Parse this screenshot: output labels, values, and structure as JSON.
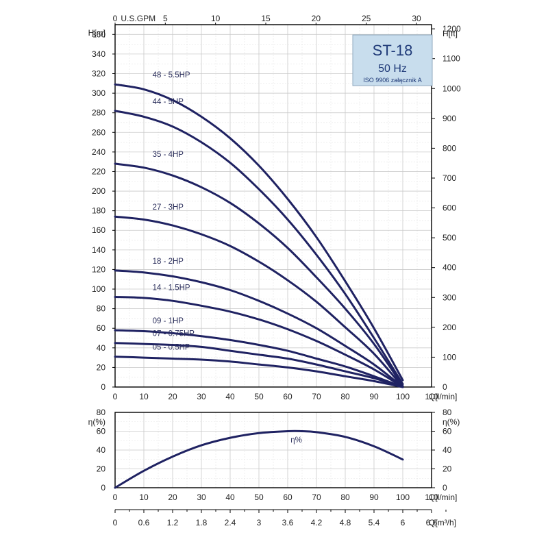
{
  "chart_data": [
    {
      "type": "line",
      "title_box": {
        "model": "ST-18",
        "frequency": "50 Hz",
        "note": "ISO 9906 załącznik A"
      },
      "x_axis": {
        "unit_label": "Q[l/min]",
        "range": [
          0,
          110
        ],
        "ticks": [
          0,
          10,
          20,
          30,
          40,
          50,
          60,
          70,
          80,
          90,
          100,
          110
        ]
      },
      "x_axis_top": {
        "unit_label": "U.S.GPM",
        "range": [
          0,
          31.5
        ],
        "ticks": [
          0,
          5,
          10,
          15,
          20,
          25,
          30
        ]
      },
      "y_axis_left": {
        "unit_label": "H[m]",
        "range": [
          0,
          370
        ],
        "ticks": [
          0,
          20,
          40,
          60,
          80,
          100,
          120,
          140,
          160,
          180,
          200,
          220,
          240,
          260,
          280,
          300,
          320,
          340,
          360
        ]
      },
      "y_axis_right": {
        "unit_label": "H[ft]",
        "range": [
          0,
          1214
        ],
        "ticks": [
          0,
          100,
          200,
          300,
          400,
          500,
          600,
          700,
          800,
          900,
          1000,
          1100,
          1200
        ]
      },
      "series": [
        {
          "name": "48 - 5.5HP",
          "x": [
            0,
            10,
            20,
            30,
            40,
            50,
            60,
            70,
            80,
            90,
            100
          ],
          "y": [
            309,
            304,
            293,
            276,
            254,
            226,
            192,
            153,
            108,
            60,
            7
          ]
        },
        {
          "name": "44 - 5HP",
          "x": [
            0,
            10,
            20,
            30,
            40,
            50,
            60,
            70,
            80,
            90,
            100
          ],
          "y": [
            282,
            276,
            266,
            250,
            229,
            202,
            171,
            135,
            95,
            50,
            3
          ]
        },
        {
          "name": "35 - 4HP",
          "x": [
            0,
            10,
            20,
            30,
            40,
            50,
            60,
            70,
            80,
            90,
            100
          ],
          "y": [
            228,
            224,
            216,
            204,
            188,
            167,
            142,
            112,
            80,
            44,
            1
          ]
        },
        {
          "name": "27 - 3HP",
          "x": [
            0,
            10,
            20,
            30,
            40,
            50,
            60,
            70,
            80,
            90,
            100
          ],
          "y": [
            174,
            171,
            165,
            156,
            144,
            128,
            109,
            87,
            61,
            34,
            0
          ]
        },
        {
          "name": "18 - 2HP",
          "x": [
            0,
            10,
            20,
            30,
            40,
            50,
            60,
            70,
            80,
            90,
            100
          ],
          "y": [
            119,
            117,
            113,
            107,
            99,
            88,
            75,
            60,
            42,
            23,
            0
          ]
        },
        {
          "name": "14 - 1.5HP",
          "x": [
            0,
            10,
            20,
            30,
            40,
            50,
            60,
            70,
            80,
            90,
            100
          ],
          "y": [
            92,
            91,
            88,
            83,
            77,
            69,
            59,
            47,
            33,
            18,
            0
          ]
        },
        {
          "name": "09 - 1HP",
          "x": [
            0,
            10,
            20,
            30,
            40,
            50,
            60,
            70,
            80,
            90,
            100
          ],
          "y": [
            58,
            57,
            55,
            52,
            48,
            43,
            37,
            29,
            21,
            11,
            0
          ]
        },
        {
          "name": "07 - 0.75HP",
          "x": [
            0,
            10,
            20,
            30,
            40,
            50,
            60,
            70,
            80,
            90,
            100
          ],
          "y": [
            45,
            44,
            43,
            41,
            37,
            33,
            29,
            23,
            16,
            9,
            0
          ]
        },
        {
          "name": "05 - 0.5HP",
          "x": [
            0,
            10,
            20,
            30,
            40,
            50,
            60,
            70,
            80,
            90,
            100
          ],
          "y": [
            31,
            30,
            29,
            28,
            26,
            23,
            20,
            16,
            11,
            6,
            0
          ]
        }
      ]
    },
    {
      "type": "line",
      "x_axis": {
        "unit_label": "Q[l/min]",
        "range": [
          0,
          110
        ],
        "ticks": [
          0,
          10,
          20,
          30,
          40,
          50,
          60,
          70,
          80,
          90,
          100,
          110
        ]
      },
      "x_axis_m3h": {
        "unit_label": "Q[m³/h]",
        "ticks": [
          "0",
          "0.6",
          "1.2",
          "1.8",
          "2.4",
          "3",
          "3.6",
          "4.2",
          "4.8",
          "5.4",
          "6",
          "6.6"
        ]
      },
      "y_axis": {
        "unit_label": "η(%)",
        "range": [
          0,
          80
        ],
        "ticks": [
          0,
          20,
          40,
          60,
          80
        ]
      },
      "series": [
        {
          "name": "η%",
          "x": [
            0,
            10,
            20,
            30,
            40,
            50,
            60,
            65,
            70,
            80,
            90,
            100
          ],
          "y": [
            0,
            18,
            33,
            45,
            53,
            58,
            60,
            60,
            59,
            54,
            44,
            30
          ]
        }
      ]
    }
  ]
}
